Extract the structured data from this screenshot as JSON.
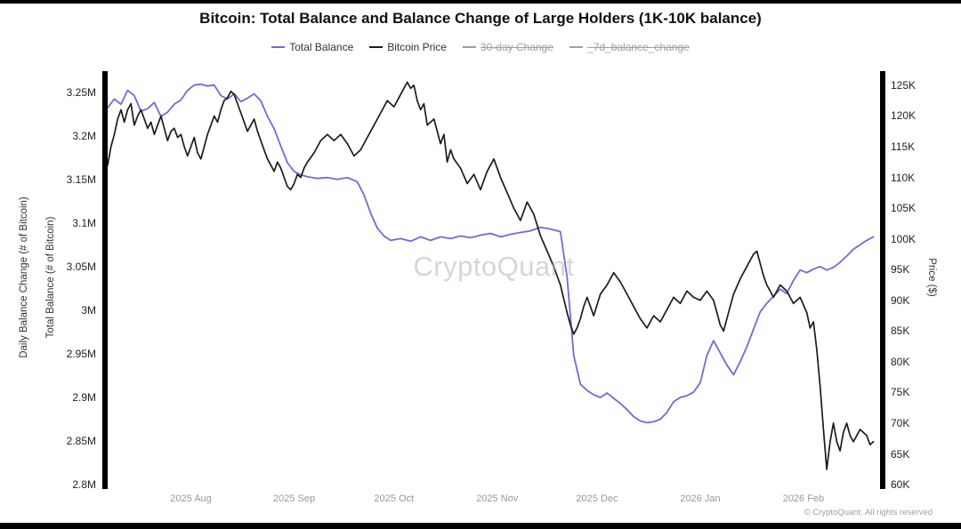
{
  "page": {
    "title": "Bitcoin: Total Balance and Balance Change of Large Holders (1K-10K balance)",
    "watermark": "CryptoQuant",
    "footer": "© CryptoQuant. All rights reserved"
  },
  "legend": {
    "items": [
      {
        "label": "Total Balance",
        "color": "#6f6cd4",
        "active": true
      },
      {
        "label": "Bitcoin Price",
        "color": "#1c1c1c",
        "active": true
      },
      {
        "label": "30-day Change",
        "color": "#9e9e9e",
        "active": false
      },
      {
        "label": "_7d_balance_change",
        "color": "#9e9e9e",
        "active": false
      }
    ]
  },
  "axes": {
    "left_outer_label": "Daily Balance Change (# of Bitcoin)",
    "left_label": "Total Balance (# of Bitcoin)",
    "right_label": "Price ($)"
  },
  "chart_data": {
    "type": "line",
    "title": "Bitcoin: Total Balance and Balance Change of Large Holders (1K-10K balance)",
    "grid": false,
    "legend_position": "top",
    "x_axis": {
      "tick_labels": [
        "2025 Aug",
        "2025 Sep",
        "2025 Oct",
        "2025 Nov",
        "2025 Dec",
        "2026 Jan",
        "2026 Feb"
      ],
      "tick_positions_days": [
        25,
        56,
        86,
        117,
        147,
        178,
        209
      ],
      "range_days": [
        0,
        232
      ]
    },
    "left_axis": {
      "label": "Total Balance (# of Bitcoin)",
      "unit": "BTC millions",
      "tick_values": [
        3.25,
        3.2,
        3.15,
        3.1,
        3.05,
        3.0,
        2.95,
        2.9,
        2.85,
        2.8
      ],
      "tick_labels": [
        "3.25M",
        "3.2M",
        "3.15M",
        "3.1M",
        "3.05M",
        "3M",
        "2.95M",
        "2.9M",
        "2.85M",
        "2.8M"
      ],
      "range": [
        2.795,
        3.274
      ]
    },
    "right_axis": {
      "label": "Price ($)",
      "unit": "USD thousands",
      "tick_values": [
        125,
        120,
        115,
        110,
        105,
        100,
        95,
        90,
        85,
        80,
        75,
        70,
        65,
        60
      ],
      "tick_labels": [
        "125K",
        "120K",
        "115K",
        "110K",
        "105K",
        "100K",
        "95K",
        "90K",
        "85K",
        "80K",
        "75K",
        "70K",
        "65K",
        "60K"
      ],
      "range": [
        59.3,
        127.3
      ]
    },
    "series": [
      {
        "name": "Total Balance",
        "axis": "left",
        "color": "#6f6cd4",
        "stroke_width": 1.8,
        "points": [
          [
            0,
            3.232
          ],
          [
            2,
            3.242
          ],
          [
            4,
            3.236
          ],
          [
            6,
            3.252
          ],
          [
            8,
            3.246
          ],
          [
            10,
            3.228
          ],
          [
            12,
            3.231
          ],
          [
            14,
            3.238
          ],
          [
            16,
            3.222
          ],
          [
            18,
            3.227
          ],
          [
            20,
            3.236
          ],
          [
            22,
            3.241
          ],
          [
            24,
            3.252
          ],
          [
            26,
            3.258
          ],
          [
            28,
            3.259
          ],
          [
            30,
            3.257
          ],
          [
            32,
            3.258
          ],
          [
            34,
            3.246
          ],
          [
            36,
            3.242
          ],
          [
            38,
            3.248
          ],
          [
            40,
            3.239
          ],
          [
            42,
            3.243
          ],
          [
            44,
            3.248
          ],
          [
            46,
            3.24
          ],
          [
            48,
            3.222
          ],
          [
            50,
            3.208
          ],
          [
            52,
            3.188
          ],
          [
            54,
            3.169
          ],
          [
            56,
            3.159
          ],
          [
            58,
            3.155
          ],
          [
            60,
            3.153
          ],
          [
            63,
            3.151
          ],
          [
            66,
            3.152
          ],
          [
            69,
            3.15
          ],
          [
            72,
            3.152
          ],
          [
            75,
            3.147
          ],
          [
            77,
            3.132
          ],
          [
            79,
            3.111
          ],
          [
            81,
            3.094
          ],
          [
            83,
            3.085
          ],
          [
            85,
            3.08
          ],
          [
            88,
            3.082
          ],
          [
            91,
            3.079
          ],
          [
            94,
            3.084
          ],
          [
            97,
            3.08
          ],
          [
            100,
            3.084
          ],
          [
            103,
            3.082
          ],
          [
            106,
            3.085
          ],
          [
            109,
            3.083
          ],
          [
            112,
            3.086
          ],
          [
            115,
            3.088
          ],
          [
            118,
            3.084
          ],
          [
            121,
            3.087
          ],
          [
            124,
            3.089
          ],
          [
            127,
            3.091
          ],
          [
            130,
            3.095
          ],
          [
            133,
            3.093
          ],
          [
            136,
            3.09
          ],
          [
            138,
            3.038
          ],
          [
            140,
            2.948
          ],
          [
            142,
            2.915
          ],
          [
            144,
            2.908
          ],
          [
            146,
            2.903
          ],
          [
            148,
            2.9
          ],
          [
            150,
            2.905
          ],
          [
            152,
            2.899
          ],
          [
            154,
            2.893
          ],
          [
            156,
            2.886
          ],
          [
            158,
            2.878
          ],
          [
            160,
            2.873
          ],
          [
            162,
            2.871
          ],
          [
            164,
            2.872
          ],
          [
            166,
            2.875
          ],
          [
            168,
            2.883
          ],
          [
            170,
            2.895
          ],
          [
            172,
            2.9
          ],
          [
            174,
            2.902
          ],
          [
            176,
            2.906
          ],
          [
            178,
            2.917
          ],
          [
            180,
            2.948
          ],
          [
            182,
            2.965
          ],
          [
            184,
            2.951
          ],
          [
            186,
            2.937
          ],
          [
            188,
            2.926
          ],
          [
            190,
            2.941
          ],
          [
            192,
            2.958
          ],
          [
            194,
            2.978
          ],
          [
            196,
            2.998
          ],
          [
            198,
            3.008
          ],
          [
            200,
            3.016
          ],
          [
            202,
            3.024
          ],
          [
            204,
            3.019
          ],
          [
            206,
            3.034
          ],
          [
            208,
            3.046
          ],
          [
            210,
            3.043
          ],
          [
            212,
            3.047
          ],
          [
            214,
            3.05
          ],
          [
            216,
            3.046
          ],
          [
            218,
            3.049
          ],
          [
            220,
            3.055
          ],
          [
            222,
            3.062
          ],
          [
            224,
            3.07
          ],
          [
            226,
            3.075
          ],
          [
            228,
            3.08
          ],
          [
            230,
            3.084
          ]
        ]
      },
      {
        "name": "Bitcoin Price",
        "axis": "right",
        "color": "#1c1c1c",
        "stroke_width": 1.7,
        "points": [
          [
            0,
            112
          ],
          [
            1,
            115
          ],
          [
            2,
            117
          ],
          [
            3,
            119.5
          ],
          [
            4,
            121
          ],
          [
            5,
            119
          ],
          [
            6,
            121
          ],
          [
            7,
            122
          ],
          [
            8,
            118.5
          ],
          [
            9,
            120
          ],
          [
            10,
            121
          ],
          [
            11,
            119.5
          ],
          [
            12,
            118
          ],
          [
            13,
            119
          ],
          [
            14,
            117
          ],
          [
            15,
            118.5
          ],
          [
            16,
            120
          ],
          [
            17,
            118
          ],
          [
            18,
            116
          ],
          [
            19,
            117.5
          ],
          [
            20,
            118
          ],
          [
            21,
            116.5
          ],
          [
            22,
            117
          ],
          [
            23,
            115
          ],
          [
            24,
            113.5
          ],
          [
            25,
            115
          ],
          [
            26,
            116.5
          ],
          [
            27,
            114
          ],
          [
            28,
            113
          ],
          [
            29,
            115
          ],
          [
            30,
            117
          ],
          [
            31,
            118.5
          ],
          [
            32,
            120
          ],
          [
            33,
            119
          ],
          [
            34,
            121
          ],
          [
            35,
            122.5
          ],
          [
            36,
            123
          ],
          [
            37,
            124
          ],
          [
            38,
            123.5
          ],
          [
            39,
            122
          ],
          [
            40,
            120.5
          ],
          [
            41,
            119
          ],
          [
            42,
            117.5
          ],
          [
            43,
            118.5
          ],
          [
            44,
            119.5
          ],
          [
            45,
            117.5
          ],
          [
            46,
            116
          ],
          [
            47,
            114.5
          ],
          [
            48,
            113
          ],
          [
            49,
            112
          ],
          [
            50,
            111
          ],
          [
            51,
            112.5
          ],
          [
            52,
            111.5
          ],
          [
            53,
            110
          ],
          [
            54,
            108.5
          ],
          [
            55,
            108
          ],
          [
            56,
            109
          ],
          [
            57,
            110.5
          ],
          [
            58,
            110
          ],
          [
            59,
            111.5
          ],
          [
            60,
            112.5
          ],
          [
            62,
            114
          ],
          [
            64,
            116
          ],
          [
            66,
            117
          ],
          [
            68,
            116
          ],
          [
            70,
            117
          ],
          [
            72,
            115.5
          ],
          [
            74,
            113.5
          ],
          [
            76,
            114.5
          ],
          [
            78,
            116.5
          ],
          [
            80,
            118.5
          ],
          [
            82,
            120.5
          ],
          [
            84,
            122.5
          ],
          [
            86,
            121.5
          ],
          [
            88,
            123.5
          ],
          [
            90,
            125.5
          ],
          [
            91,
            124.5
          ],
          [
            92,
            125
          ],
          [
            93,
            122.5
          ],
          [
            94,
            121
          ],
          [
            95,
            122
          ],
          [
            96,
            118.5
          ],
          [
            98,
            119.5
          ],
          [
            100,
            115.5
          ],
          [
            101,
            117
          ],
          [
            102,
            112.5
          ],
          [
            103,
            114.5
          ],
          [
            104,
            113
          ],
          [
            106,
            111.5
          ],
          [
            108,
            109
          ],
          [
            110,
            110.5
          ],
          [
            112,
            108
          ],
          [
            114,
            111
          ],
          [
            116,
            113
          ],
          [
            118,
            110
          ],
          [
            120,
            107.5
          ],
          [
            122,
            105
          ],
          [
            124,
            103
          ],
          [
            126,
            106
          ],
          [
            128,
            104
          ],
          [
            130,
            100.5
          ],
          [
            132,
            98
          ],
          [
            134,
            95.5
          ],
          [
            136,
            92.5
          ],
          [
            138,
            88
          ],
          [
            139,
            86
          ],
          [
            140,
            84.5
          ],
          [
            141,
            85.5
          ],
          [
            142,
            87
          ],
          [
            143,
            89
          ],
          [
            144,
            90.5
          ],
          [
            145,
            89
          ],
          [
            146,
            87.5
          ],
          [
            148,
            91
          ],
          [
            150,
            92.5
          ],
          [
            152,
            94.5
          ],
          [
            154,
            93
          ],
          [
            156,
            91
          ],
          [
            158,
            89
          ],
          [
            160,
            87
          ],
          [
            162,
            85.5
          ],
          [
            164,
            87.5
          ],
          [
            166,
            86.5
          ],
          [
            168,
            88.5
          ],
          [
            170,
            90.5
          ],
          [
            172,
            89.5
          ],
          [
            174,
            91.5
          ],
          [
            176,
            90.5
          ],
          [
            178,
            90
          ],
          [
            180,
            91.5
          ],
          [
            182,
            90
          ],
          [
            183,
            88
          ],
          [
            184,
            86
          ],
          [
            185,
            85
          ],
          [
            186,
            87
          ],
          [
            187,
            89
          ],
          [
            188,
            91
          ],
          [
            190,
            93.5
          ],
          [
            192,
            95.5
          ],
          [
            194,
            97.5
          ],
          [
            195,
            98
          ],
          [
            196,
            96
          ],
          [
            197,
            94
          ],
          [
            198,
            92.5
          ],
          [
            200,
            90.5
          ],
          [
            202,
            92.5
          ],
          [
            204,
            91.5
          ],
          [
            206,
            89.5
          ],
          [
            208,
            90.5
          ],
          [
            210,
            88
          ],
          [
            211,
            85.5
          ],
          [
            212,
            86.5
          ],
          [
            213,
            82
          ],
          [
            214,
            76
          ],
          [
            215,
            69
          ],
          [
            216,
            62.5
          ],
          [
            217,
            67
          ],
          [
            218,
            70
          ],
          [
            219,
            67
          ],
          [
            220,
            65.5
          ],
          [
            221,
            68.5
          ],
          [
            222,
            70
          ],
          [
            223,
            68
          ],
          [
            224,
            67
          ],
          [
            226,
            69
          ],
          [
            228,
            68
          ],
          [
            229,
            66.5
          ],
          [
            230,
            67
          ]
        ]
      }
    ]
  }
}
